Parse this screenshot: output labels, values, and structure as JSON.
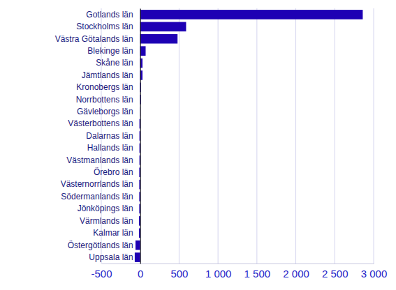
{
  "chart_data": {
    "type": "bar",
    "orientation": "horizontal",
    "grid": true,
    "color": "#1e00b4",
    "categories": [
      "Gotlands län",
      "Stockholms län",
      "Västra Götalands län",
      "Blekinge län",
      "Skåne län",
      "Jämtlands län",
      "Kronobergs län",
      "Norrbottens län",
      "Gävleborgs län",
      "Västerbottens län",
      "Dalarnas län",
      "Hallands län",
      "Västmanlands län",
      "Örebro län",
      "Västernorrlands län",
      "Södermanlands län",
      "Jönköpings län",
      "Värmlands län",
      "Kalmar län",
      "Östergötlands län",
      "Uppsala län"
    ],
    "values": [
      2860,
      590,
      480,
      70,
      30,
      30,
      10,
      10,
      -2,
      -10,
      -10,
      -10,
      -10,
      -12,
      -12,
      -12,
      -12,
      -15,
      -15,
      -60,
      -70
    ],
    "xlim": [
      -500,
      3000
    ],
    "xticks": [
      -500,
      0,
      500,
      {
        "value": 1000,
        "label": "1 000"
      },
      {
        "value": 1500,
        "label": "1 500"
      },
      {
        "value": 2000,
        "label": "2 000"
      },
      {
        "value": 2500,
        "label": "2 500"
      },
      {
        "value": 3000,
        "label": "3 000"
      }
    ]
  }
}
